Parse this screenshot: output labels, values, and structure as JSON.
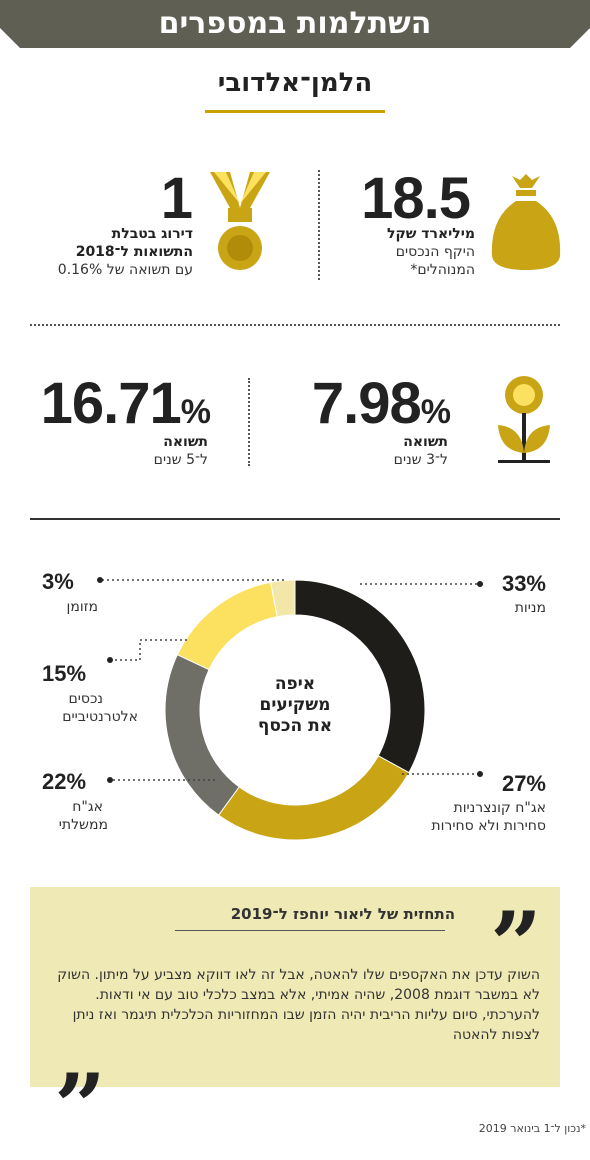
{
  "header": {
    "title": "השתלמות במספרים",
    "subtitle": "הלמן־אלדובי"
  },
  "stats": {
    "assets": {
      "number": "18.5",
      "bold": "מיליארד שקל",
      "line1": "היקף הנכסים",
      "line2": "המנוהלים*"
    },
    "ranking": {
      "number": "1",
      "bold1": "דירוג בטבלת",
      "bold2": "התשואות ל־2018",
      "line": "עם תשואה של 0.16%"
    },
    "return3": {
      "number": "7.98",
      "pct": "%",
      "bold": "תשואה",
      "line": "ל־3 שנים"
    },
    "return5": {
      "number": "16.71",
      "pct": "%",
      "bold": "תשואה",
      "line": "ל־5 שנים"
    }
  },
  "donut_center": {
    "line1": "איפה",
    "line2": "משקיעים",
    "line3": "את הכסף"
  },
  "legend": {
    "stocks": {
      "pct": "33%",
      "label1": "מניות"
    },
    "corp": {
      "pct": "27%",
      "label1": "אג\"ח קונצרניות",
      "label2": "סחירות ולא סחירות"
    },
    "gov": {
      "pct": "22%",
      "label1": "אג\"ח",
      "label2": "ממשלתי"
    },
    "alt": {
      "pct": "15%",
      "label1": "נכסים",
      "label2": "אלטרנטיביים"
    },
    "cash": {
      "pct": "3%",
      "label1": "מזומן"
    }
  },
  "chart_data": {
    "type": "pie",
    "categories": [
      "מניות",
      "אג\"ח קונצרניות סחירות ולא סחירות",
      "אג\"ח ממשלתי",
      "נכסים אלטרנטיביים",
      "מזומן"
    ],
    "values": [
      33,
      27,
      22,
      15,
      3
    ],
    "colors": [
      "#1f1d1a",
      "#c9a414",
      "#6f6f68",
      "#fce05f",
      "#f2e7a8"
    ]
  },
  "quote": {
    "title": "התחזית של ליאור יוחפז ל־2019",
    "body": "השוק עדכן את האקספים שלו להאטה, אבל זה לאו דווקא מצביע על מיתון. השוק לא במשבר דוגמת 2008, שהיה אמיתי, אלא במצב כלכלי טוב עם אי ודאות. להערכתי, סיום עליות הריבית יהיה הזמן שבו המחזוריות הכלכלית תיגמר ואז ניתן לצפות להאטה",
    "open_mark": "”",
    "close_mark": "”"
  },
  "footnote": "*נכון ל־1 בינואר 2019",
  "colors": {
    "banner": "#5f5f54",
    "gold": "#c9a200",
    "quote_bg": "#efe9b6"
  }
}
